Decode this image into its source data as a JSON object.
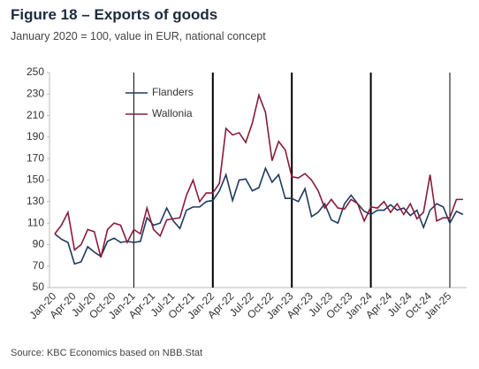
{
  "chart_data": {
    "type": "line",
    "title": "Figure 18 – Exports of goods",
    "subtitle": "January 2020 = 100, value in EUR, national concept",
    "source": "Source: KBC Economics based on NBB.Stat",
    "categories": [
      "Jan-20",
      null,
      null,
      "Apr-20",
      null,
      null,
      "Jul-20",
      null,
      null,
      "Oct-20",
      null,
      null,
      "Jan-21",
      null,
      null,
      "Apr-21",
      null,
      null,
      "Jul-21",
      null,
      null,
      "Oct-21",
      null,
      null,
      "Jan-22",
      null,
      null,
      "Apr-22",
      null,
      null,
      "Jul-22",
      null,
      null,
      "Oct-22",
      null,
      null,
      "Jan-23",
      null,
      null,
      "Apr-23",
      null,
      null,
      "Jul-23",
      null,
      null,
      "Oct-23",
      null,
      null,
      "Jan-24",
      null,
      null,
      "Apr-24",
      null,
      null,
      "Jul-24",
      null,
      null,
      "Oct-24",
      null,
      null,
      "Jan-25",
      null,
      null
    ],
    "series": [
      {
        "name": "Flanders",
        "color": "#1f3a5f",
        "values": [
          100,
          95,
          92,
          72,
          74,
          88,
          83,
          79,
          93,
          96,
          92,
          93,
          92,
          93,
          115,
          108,
          110,
          124,
          112,
          105,
          122,
          125,
          125,
          130,
          131,
          140,
          155,
          131,
          150,
          151,
          140,
          143,
          161,
          148,
          155,
          133,
          133,
          130,
          142,
          116,
          120,
          128,
          113,
          110,
          128,
          136,
          128,
          121,
          118,
          122,
          122,
          127,
          122,
          124,
          117,
          122,
          106,
          122,
          128,
          125,
          110,
          121,
          118
        ]
      },
      {
        "name": "Wallonia",
        "color": "#8b1a3a",
        "values": [
          100,
          108,
          120,
          85,
          90,
          104,
          102,
          78,
          104,
          110,
          108,
          92,
          104,
          100,
          124,
          104,
          98,
          113,
          114,
          115,
          136,
          150,
          130,
          138,
          138,
          147,
          198,
          192,
          194,
          185,
          203,
          229,
          213,
          168,
          186,
          178,
          153,
          152,
          156,
          150,
          140,
          124,
          132,
          124,
          123,
          132,
          128,
          112,
          125,
          124,
          130,
          120,
          128,
          118,
          128,
          114,
          120,
          155,
          112,
          115,
          115,
          132,
          132
        ]
      }
    ],
    "ylim": [
      50,
      250
    ],
    "yticks": [
      50,
      70,
      90,
      110,
      130,
      150,
      170,
      190,
      210,
      230,
      250
    ],
    "grid": false,
    "legend": "top-left"
  }
}
